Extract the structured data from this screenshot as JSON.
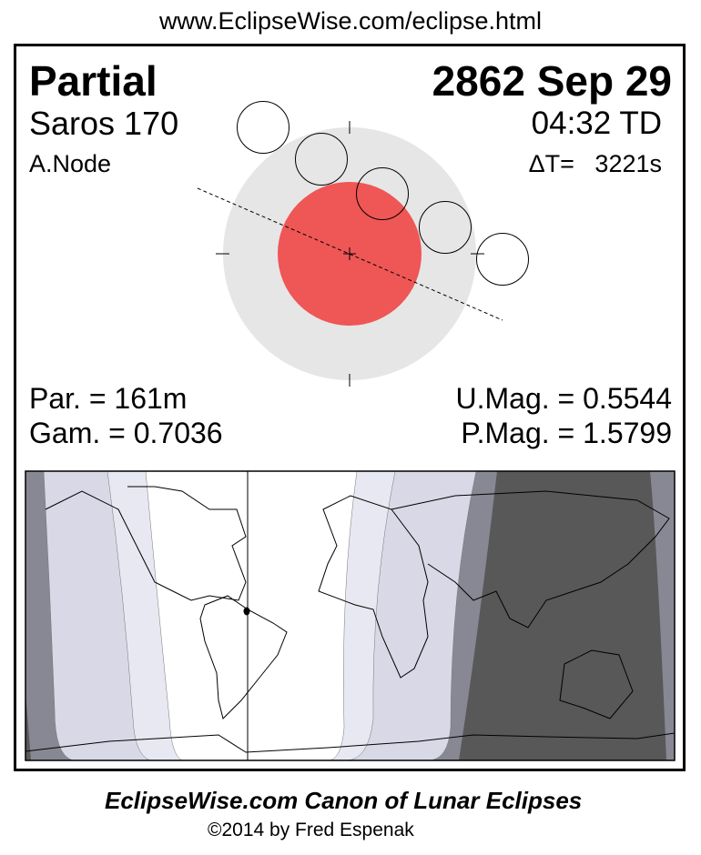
{
  "header_url": "www.EclipseWise.com/eclipse.html",
  "eclipse": {
    "type": "Partial",
    "date": "2862 Sep 29",
    "saros": "Saros 170",
    "time": "04:32 TD",
    "node": "A.Node",
    "delta_t": "ΔT=   3221s",
    "duration": "Par. = 161m",
    "gamma": "Gam. = 0.7036",
    "umbral_mag": "U.Mag. = 0.5544",
    "penumbral_mag": "P.Mag. = 1.5799"
  },
  "colors": {
    "umbra": "#ef5656",
    "penumbra": "#e6e6e6",
    "map_light": "#e8e8f2",
    "map_lavender": "#d8d8e6",
    "map_gray": "#888894",
    "map_dark": "#585858"
  },
  "footer": {
    "title": "EclipseWise.com Canon of Lunar Eclipses",
    "copyright": "©2014 by Fred Espenak"
  }
}
